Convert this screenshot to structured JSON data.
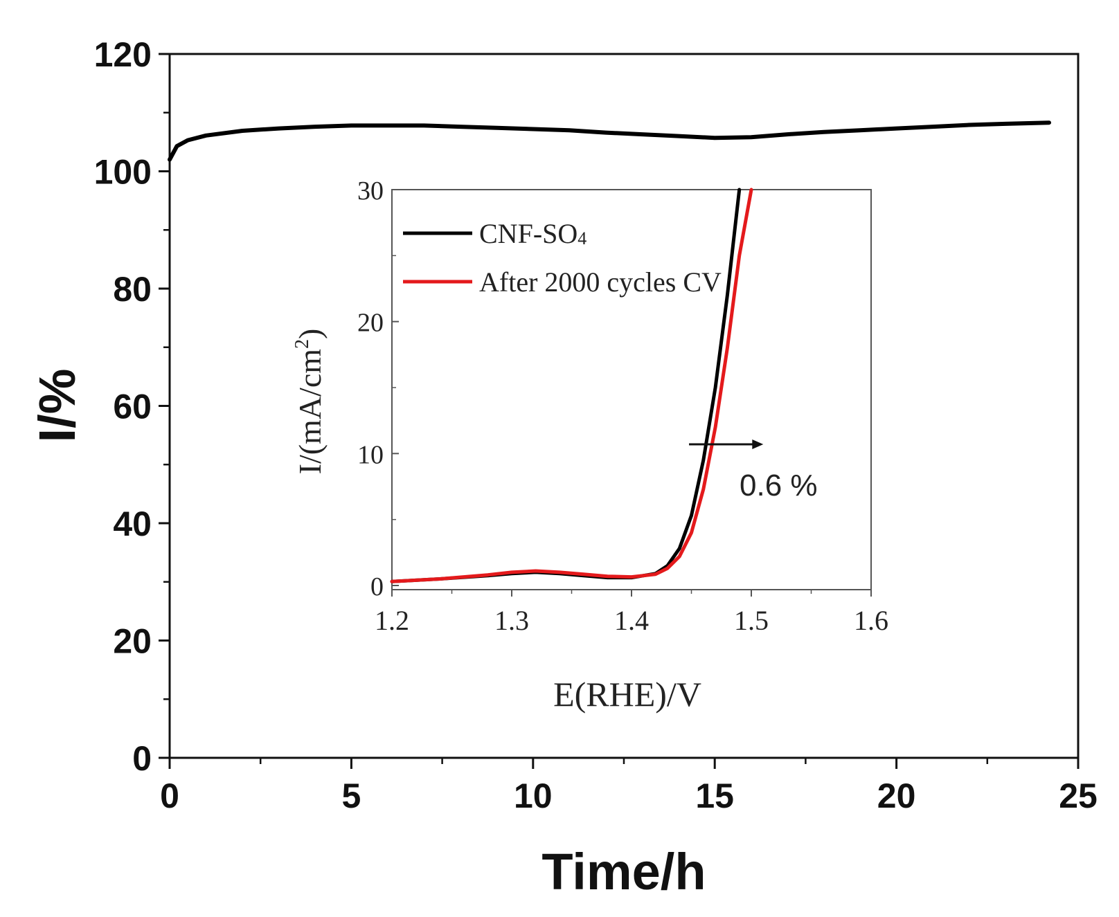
{
  "chart_data": [
    {
      "type": "line",
      "role": "main",
      "xlabel": "Time/h",
      "ylabel": "I/%",
      "xlim": [
        0,
        25
      ],
      "ylim": [
        0,
        120
      ],
      "x_ticks": [
        0,
        5,
        10,
        15,
        20,
        25
      ],
      "x_tick_labels": [
        "0",
        "5",
        "10",
        "15",
        "20",
        "25"
      ],
      "y_ticks": [
        0,
        20,
        40,
        60,
        80,
        100,
        120
      ],
      "y_tick_labels": [
        "0",
        "20",
        "40",
        "60",
        "80",
        "100",
        "120"
      ],
      "series": [
        {
          "name": "I",
          "color": "#000000",
          "x": [
            0,
            0.2,
            0.5,
            1,
            2,
            3,
            4,
            5,
            6,
            7,
            8,
            9,
            10,
            11,
            12,
            13,
            14,
            15,
            16,
            17,
            18,
            19,
            20,
            21,
            22,
            23,
            24.2
          ],
          "y": [
            102,
            104.3,
            105.3,
            106.1,
            106.9,
            107.3,
            107.6,
            107.8,
            107.8,
            107.8,
            107.6,
            107.4,
            107.2,
            107.0,
            106.6,
            106.3,
            106.0,
            105.7,
            105.8,
            106.3,
            106.7,
            107.0,
            107.3,
            107.6,
            107.9,
            108.1,
            108.3
          ]
        }
      ]
    },
    {
      "type": "line",
      "role": "inset",
      "xlabel": "E(RHE)/V",
      "ylabel_main": "I/(mA/cm",
      "ylabel_sup": "2",
      "ylabel_close": ")",
      "xlim": [
        1.2,
        1.6
      ],
      "ylim": [
        0,
        30
      ],
      "x_ticks": [
        1.2,
        1.3,
        1.4,
        1.5,
        1.6
      ],
      "x_tick_labels": [
        "1.2",
        "1.3",
        "1.4",
        "1.5",
        "1.6"
      ],
      "y_ticks": [
        0,
        10,
        20,
        30
      ],
      "y_tick_labels": [
        "0",
        "10",
        "20",
        "30"
      ],
      "series": [
        {
          "name": "CNF-SO",
          "name_sub": "4",
          "color": "#000000",
          "x": [
            1.2,
            1.24,
            1.28,
            1.3,
            1.32,
            1.34,
            1.36,
            1.38,
            1.4,
            1.42,
            1.43,
            1.44,
            1.45,
            1.46,
            1.47,
            1.48,
            1.49
          ],
          "y": [
            0.3,
            0.5,
            0.75,
            0.9,
            1.0,
            0.9,
            0.75,
            0.6,
            0.6,
            0.9,
            1.5,
            2.8,
            5.3,
            9.5,
            15.0,
            22.0,
            30.0
          ]
        },
        {
          "name": "After 2000 cycles CV",
          "color": "#e41a1c",
          "x": [
            1.2,
            1.24,
            1.28,
            1.3,
            1.32,
            1.34,
            1.36,
            1.38,
            1.4,
            1.42,
            1.43,
            1.44,
            1.45,
            1.46,
            1.47,
            1.48,
            1.49,
            1.5
          ],
          "y": [
            0.3,
            0.5,
            0.8,
            1.0,
            1.1,
            1.0,
            0.85,
            0.7,
            0.65,
            0.85,
            1.3,
            2.2,
            4.0,
            7.3,
            12.0,
            18.0,
            25.0,
            30.0
          ]
        }
      ],
      "annotation": {
        "text": "0.6 %",
        "arrow_from_x": 1.448,
        "arrow_to_x": 1.51,
        "arrow_y": 10.7
      }
    }
  ]
}
